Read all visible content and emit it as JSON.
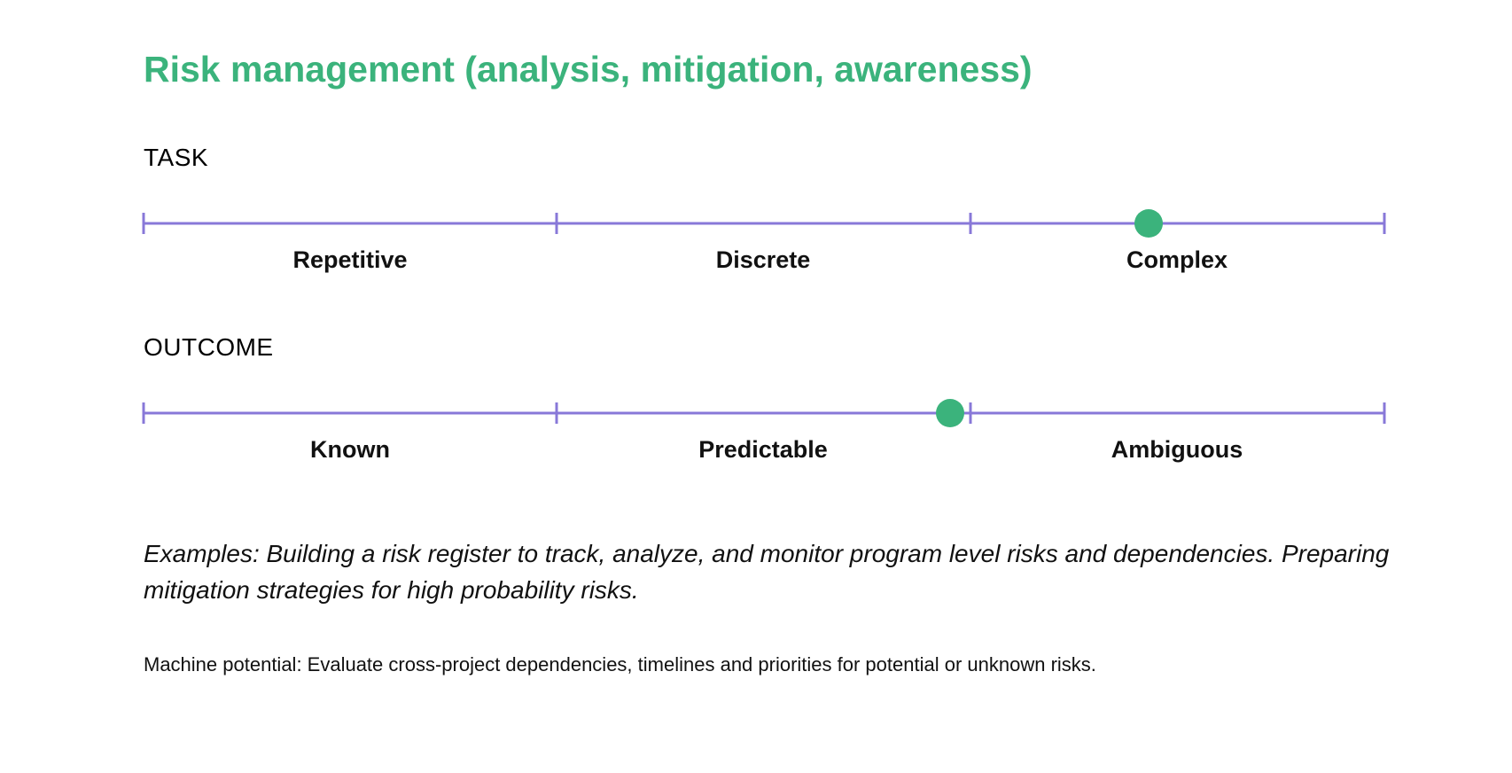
{
  "title": "Risk management (analysis, mitigation, awareness)",
  "colors": {
    "title": "#3bb37c",
    "scale_line": "#8878d8",
    "marker": "#3bb37c"
  },
  "task": {
    "label": "TASK",
    "segments": [
      "Repetitive",
      "Discrete",
      "Complex"
    ],
    "marker_position": 0.81
  },
  "outcome": {
    "label": "OUTCOME",
    "segments": [
      "Known",
      "Predictable",
      "Ambiguous"
    ],
    "marker_position": 0.65
  },
  "examples": "Examples: Building a risk register to track, analyze, and monitor program level risks and dependencies. Preparing mitigation strategies for high probability risks.",
  "machine_potential": "Machine potential: Evaluate cross-project dependencies, timelines and priorities for potential or unknown risks."
}
